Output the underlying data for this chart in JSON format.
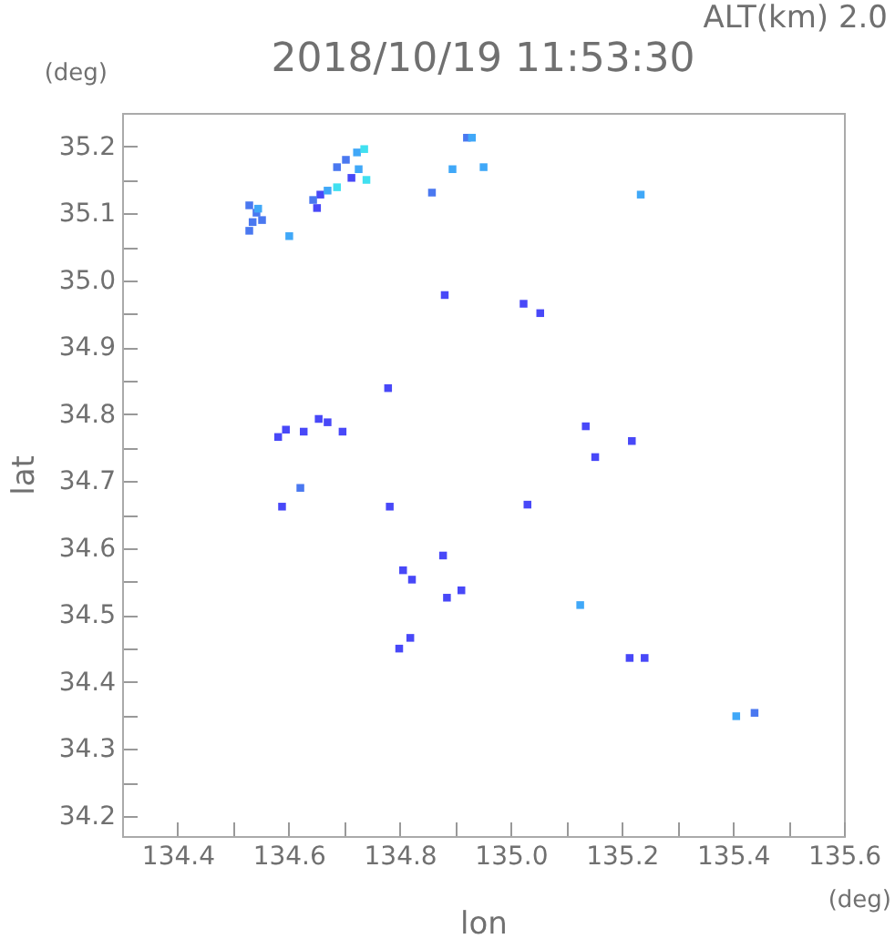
{
  "chart_data": {
    "type": "scatter",
    "title": "2018/10/19 11:53:30",
    "subtitle": "ALT(km) 2.0",
    "xlabel": "lon",
    "ylabel": "lat",
    "annotations": [
      "(deg)",
      "(deg)"
    ],
    "marker": "square",
    "grid": false,
    "legend": false,
    "xlim": [
      134.3,
      135.6
    ],
    "ylim": [
      34.17,
      35.25
    ],
    "xticks": [
      134.4,
      {
        "value": 134.5,
        "label": null
      },
      134.6,
      {
        "value": 134.7,
        "label": null
      },
      134.8,
      {
        "value": 134.9,
        "label": null
      },
      {
        "value": 135,
        "label": "135.0"
      },
      {
        "value": 135.1,
        "label": null
      },
      135.2,
      {
        "value": 135.3,
        "label": null
      },
      135.4,
      {
        "value": 135.5,
        "label": null
      },
      135.6
    ],
    "yticks": [
      34.2,
      {
        "value": 34.25,
        "label": null
      },
      34.3,
      {
        "value": 34.35,
        "label": null
      },
      34.4,
      {
        "value": 34.45,
        "label": null
      },
      34.5,
      {
        "value": 34.55,
        "label": null
      },
      34.6,
      {
        "value": 34.65,
        "label": null
      },
      34.7,
      {
        "value": 34.75,
        "label": null
      },
      34.8,
      {
        "value": 34.85,
        "label": null
      },
      34.9,
      {
        "value": 34.95,
        "label": null
      },
      {
        "value": 35,
        "label": "35.0"
      },
      {
        "value": 35.05,
        "label": null
      },
      35.1,
      {
        "value": 35.15,
        "label": null
      },
      35.2
    ],
    "series": [
      {
        "color": "#4848f8",
        "x": [
          134.657,
          134.651,
          134.713,
          134.881,
          135.023,
          135.053,
          134.779,
          135.135,
          135.218,
          135.152,
          134.782,
          135.03,
          134.581,
          134.595,
          134.627,
          134.697,
          134.654,
          134.67,
          134.588,
          134.878,
          134.806,
          134.822,
          134.885,
          134.911,
          134.819,
          134.799,
          135.241,
          135.214
        ],
        "values": [
          35.128,
          35.108,
          35.153,
          34.978,
          34.965,
          34.951,
          34.839,
          34.782,
          34.76,
          34.736,
          34.662,
          34.665,
          34.766,
          34.777,
          34.774,
          34.774,
          34.793,
          34.788,
          34.662,
          34.589,
          34.567,
          34.553,
          34.526,
          34.537,
          34.466,
          34.45,
          34.436,
          34.436
        ]
      },
      {
        "color": "#4a78f0",
        "x": [
          134.529,
          134.542,
          134.535,
          134.529,
          134.552,
          134.644,
          134.687,
          134.703,
          134.858,
          134.921,
          134.621,
          135.439
        ],
        "values": [
          35.112,
          35.101,
          35.087,
          35.074,
          35.09,
          35.12,
          35.169,
          35.18,
          35.131,
          35.213,
          34.69,
          34.354
        ]
      },
      {
        "color": "#40a8f8",
        "x": [
          134.545,
          134.67,
          134.723,
          134.726,
          134.601,
          134.895,
          134.951,
          135.234,
          135.125,
          135.406,
          134.93
        ],
        "values": [
          35.107,
          35.134,
          35.191,
          35.166,
          35.066,
          35.166,
          35.169,
          35.128,
          34.515,
          34.349,
          35.213
        ]
      },
      {
        "color": "#40e0f0",
        "x": [
          134.687,
          134.736,
          134.74
        ],
        "values": [
          35.139,
          35.196,
          35.15
        ]
      }
    ]
  }
}
